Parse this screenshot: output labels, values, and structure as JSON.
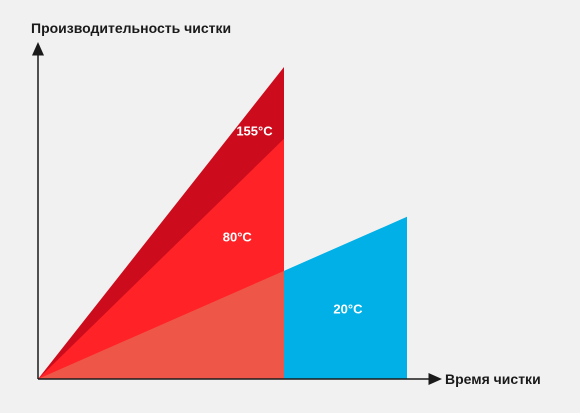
{
  "chart_data": {
    "type": "area",
    "ylabel": "Производительность чистки",
    "xlabel": "Время чистки",
    "grid": false,
    "series": [
      {
        "name": "155°C",
        "color": "#cc0b1c",
        "x": [
          0,
          100
        ],
        "y": [
          0,
          100
        ],
        "label_y": 78
      },
      {
        "name": "80°C",
        "color": "#ff2227",
        "x": [
          0,
          100
        ],
        "y": [
          0,
          77
        ],
        "label_y": 44
      },
      {
        "name": "20°C",
        "color": "#00b0e6",
        "x": [
          0,
          150
        ],
        "y": [
          0,
          52
        ],
        "visible_from_x": 100,
        "label_y": 21
      }
    ],
    "overlap_color": "#ee5748",
    "xlim": [
      0,
      165
    ],
    "ylim": [
      0,
      120
    ]
  }
}
